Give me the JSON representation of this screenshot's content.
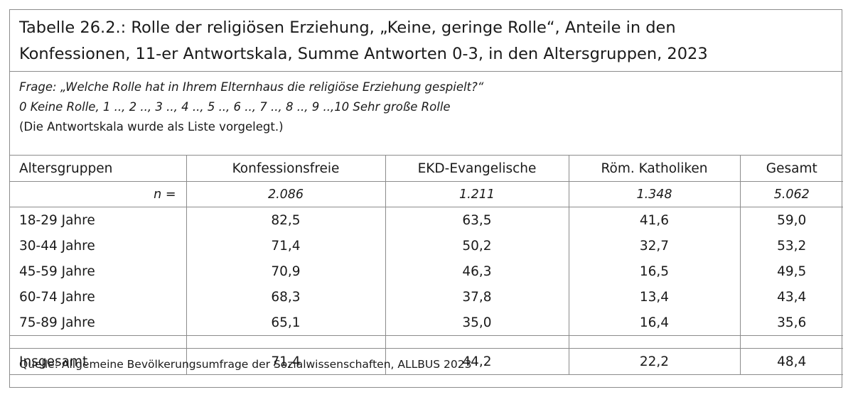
{
  "title": {
    "line1": "Tabelle 26.2.: Rolle der religiösen Erziehung, „Keine, geringe Rolle“, Anteile in den",
    "line2": "Konfessionen, 11-er Antwortskala, Summe Antworten 0-3, in den Altersgruppen, 2023"
  },
  "question": {
    "frage": "Frage: „Welche Rolle hat in Ihrem Elternhaus die religiöse Erziehung gespielt?“",
    "scale": "0 Keine Rolle, 1 .., 2 .., 3 .., 4 .., 5 .., 6 .., 7 .., 8 .., 9 ..,10 Sehr große Rolle",
    "note": "(Die Antwortskala wurde als Liste vorgelegt.)"
  },
  "table": {
    "headers": [
      "Altersgruppen",
      "Konfessionsfreie",
      "EKD-Evangelische",
      "Röm. Katholiken",
      "Gesamt"
    ],
    "n_label": "n =",
    "n_values": [
      "2.086",
      "1.211",
      "1.348",
      "5.062"
    ],
    "rows": [
      {
        "label": "18-29 Jahre",
        "values": [
          "82,5",
          "63,5",
          "41,6",
          "59,0"
        ]
      },
      {
        "label": "30-44 Jahre",
        "values": [
          "71,4",
          "50,2",
          "32,7",
          "53,2"
        ]
      },
      {
        "label": "45-59 Jahre",
        "values": [
          "70,9",
          "46,3",
          "16,5",
          "49,5"
        ]
      },
      {
        "label": "60-74 Jahre",
        "values": [
          "68,3",
          "37,8",
          "13,4",
          "43,4"
        ]
      },
      {
        "label": "75-89 Jahre",
        "values": [
          "65,1",
          "35,0",
          "16,4",
          "35,6"
        ]
      }
    ],
    "total": {
      "label": "Insgesamt",
      "values": [
        "71,4",
        "44,2",
        "22,2",
        "48,4"
      ]
    }
  },
  "source": "Quelle: Allgemeine Bevölkerungsumfrage der Sozialwissenschaften, ALLBUS 2023"
}
